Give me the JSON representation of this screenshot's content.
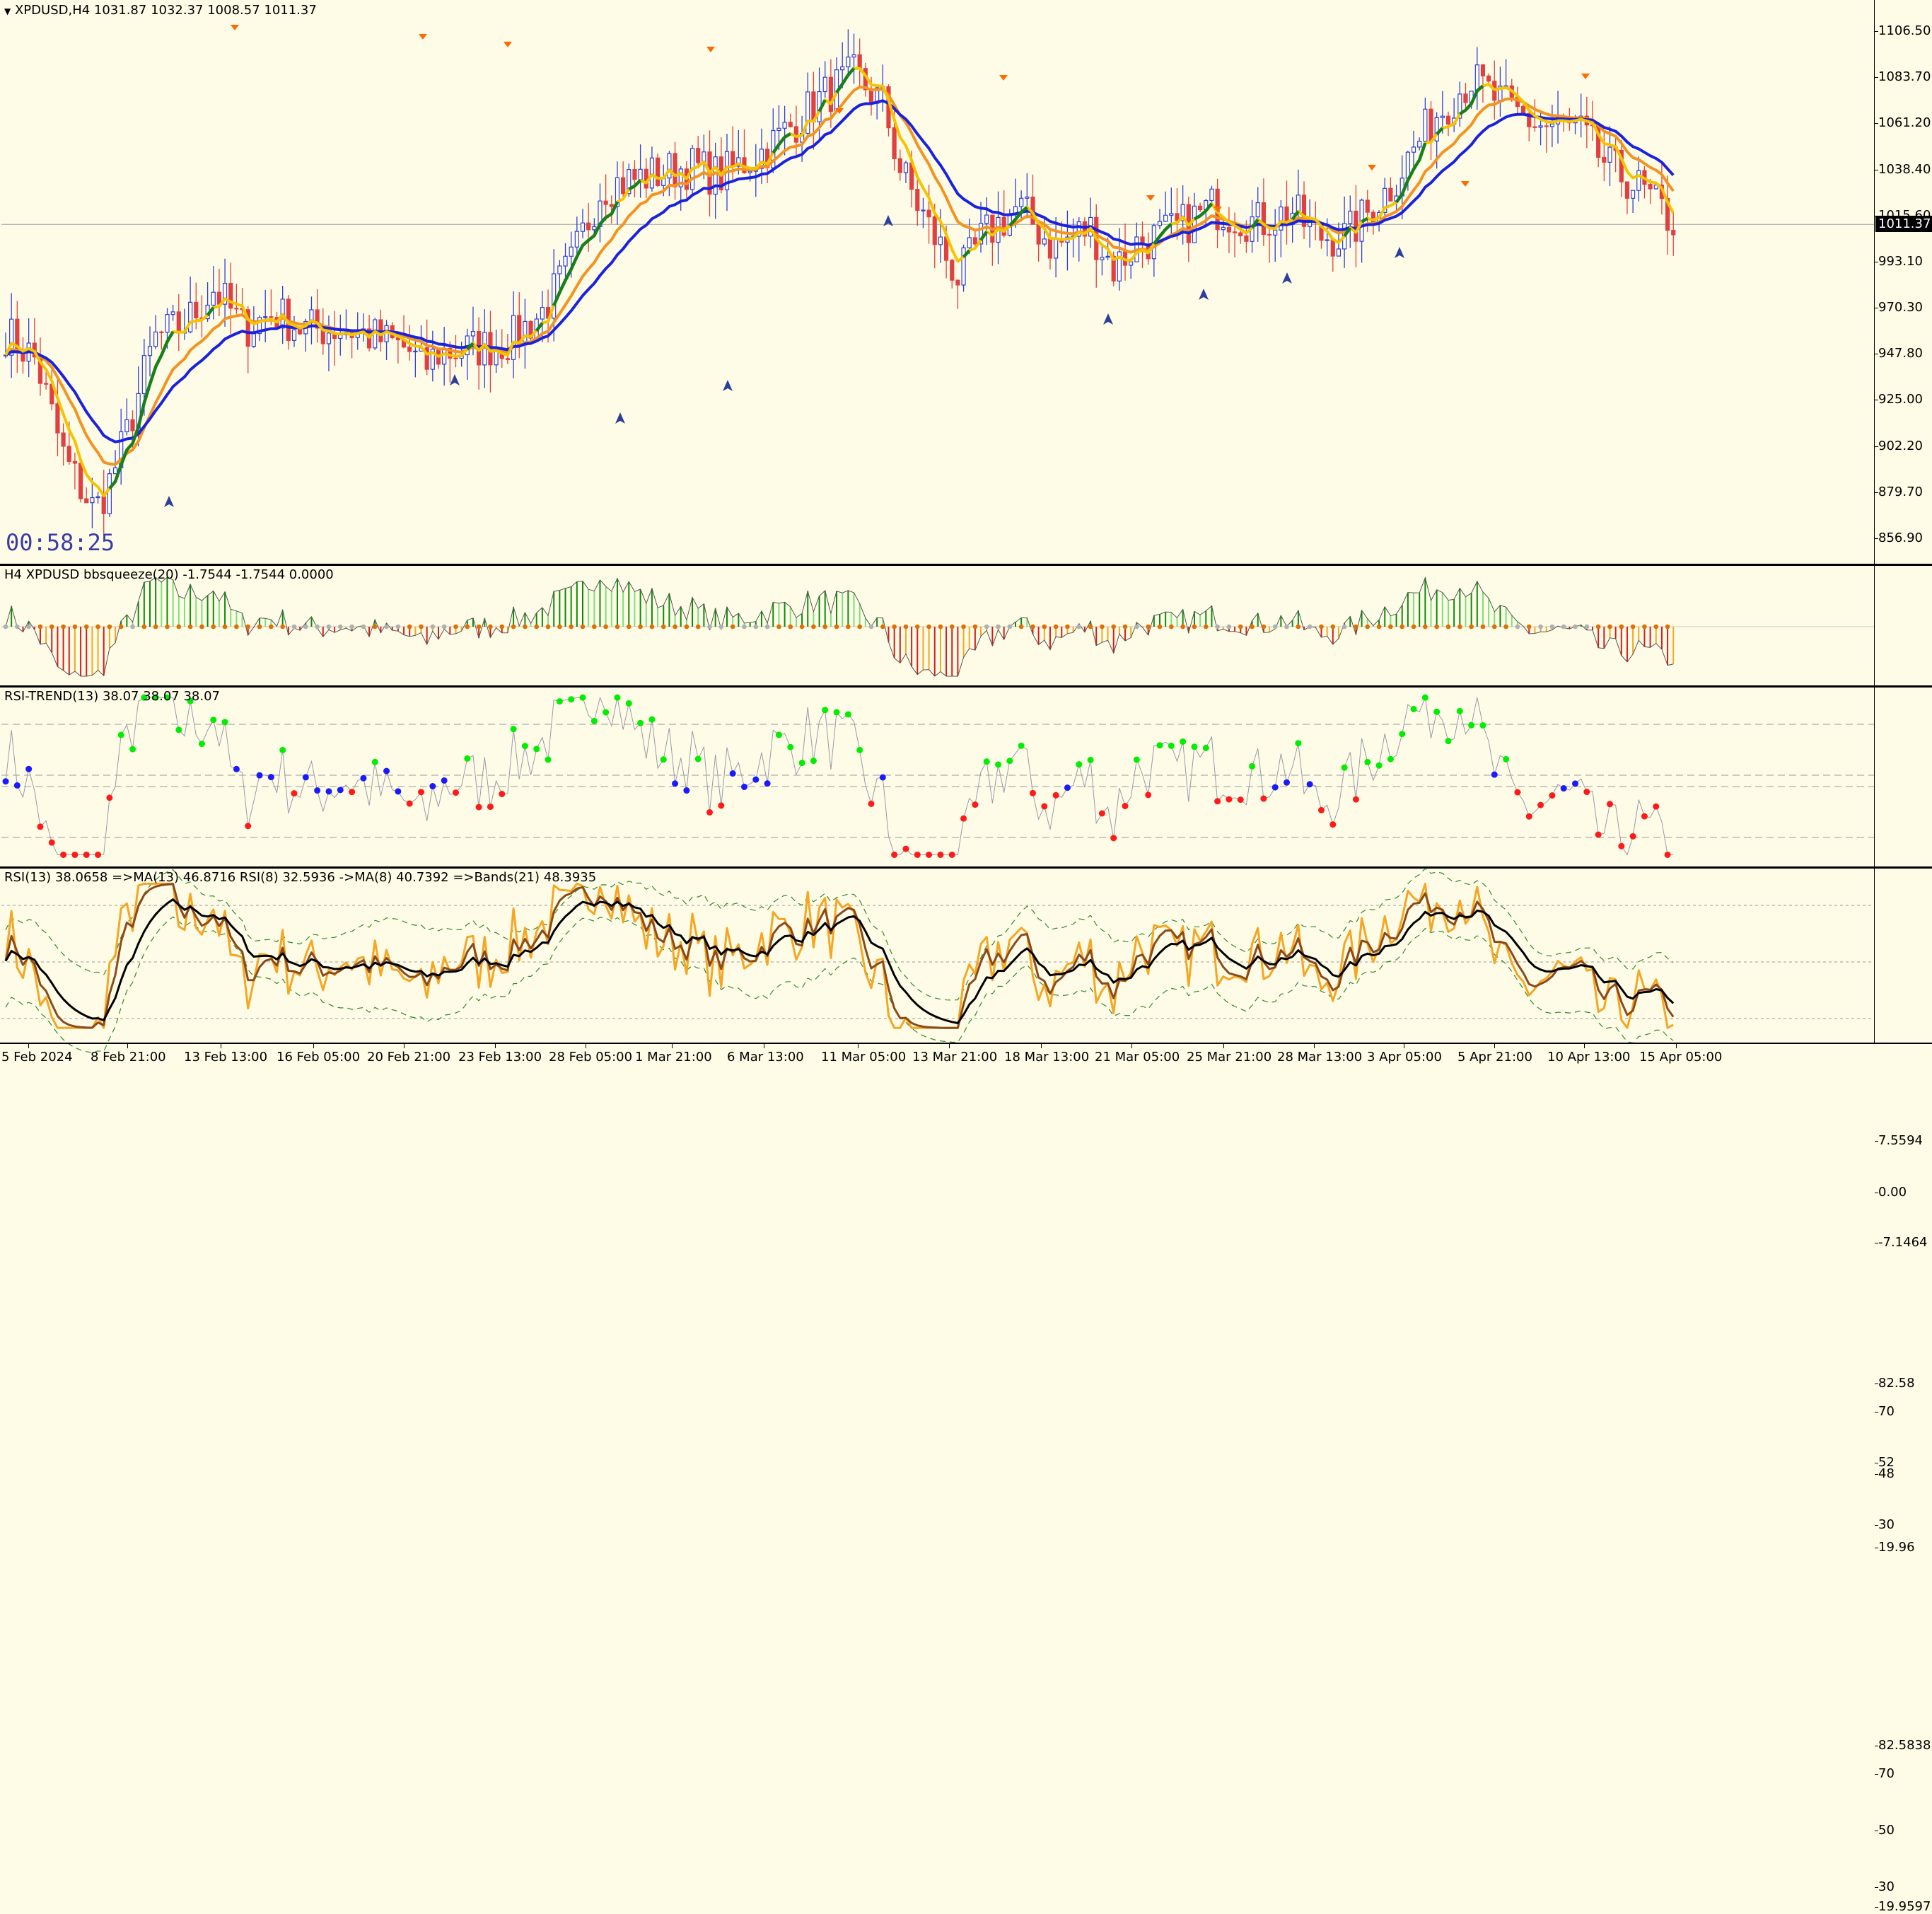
{
  "window": {
    "symbol_header": "XPDUSD,H4  1031.87 1032.37 1008.57 1011.37",
    "timer": "00:58:25"
  },
  "main_chart": {
    "y_axis": [
      "1106.50",
      "1083.70",
      "1061.20",
      "1038.40",
      "1015.60",
      "993.10",
      "970.30",
      "947.80",
      "925.00",
      "902.20",
      "879.70",
      "856.90"
    ],
    "current_price": "1011.37",
    "colors": {
      "bull": "#2e3ed9",
      "bear": "#e04040",
      "ma_fast": "#f5c400",
      "ma_mid": "#17801a",
      "ma_slow_orange": "#f39322",
      "ma_blue": "#1a22e0",
      "arrow_down": "#ff6a00",
      "arrow_up": "#2c3f9a"
    }
  },
  "bbsqueeze": {
    "label": "H4 XPDUSD bbsqueeze(20) -1.7544 -1.7544 0.0000",
    "y_axis": [
      "7.5594",
      "0.00",
      "-7.1464"
    ]
  },
  "rsi_trend": {
    "label": "RSI-TREND(13) 38.07 38.07 38.07",
    "y_axis": [
      "82.58",
      "70",
      "52",
      "48",
      "30",
      "19.96"
    ]
  },
  "rsi_ma": {
    "label": "RSI(13) 38.0658  =>MA(13) 46.8716  RSI(8) 32.5936  ->MA(8) 40.7392  =>Bands(21) 48.3935",
    "y_axis": [
      "82.5838",
      "70",
      "50",
      "30",
      "19.9597"
    ]
  },
  "x_axis": [
    "5 Feb 2024",
    "8 Feb 21:00",
    "13 Feb 13:00",
    "16 Feb 05:00",
    "20 Feb 21:00",
    "23 Feb 13:00",
    "28 Feb 05:00",
    "1 Mar 21:00",
    "6 Mar 13:00",
    "11 Mar 05:00",
    "13 Mar 21:00",
    "18 Mar 13:00",
    "21 Mar 05:00",
    "25 Mar 21:00",
    "28 Mar 13:00",
    "3 Apr 05:00",
    "5 Apr 21:00",
    "10 Apr 13:00",
    "15 Apr 05:00"
  ]
}
